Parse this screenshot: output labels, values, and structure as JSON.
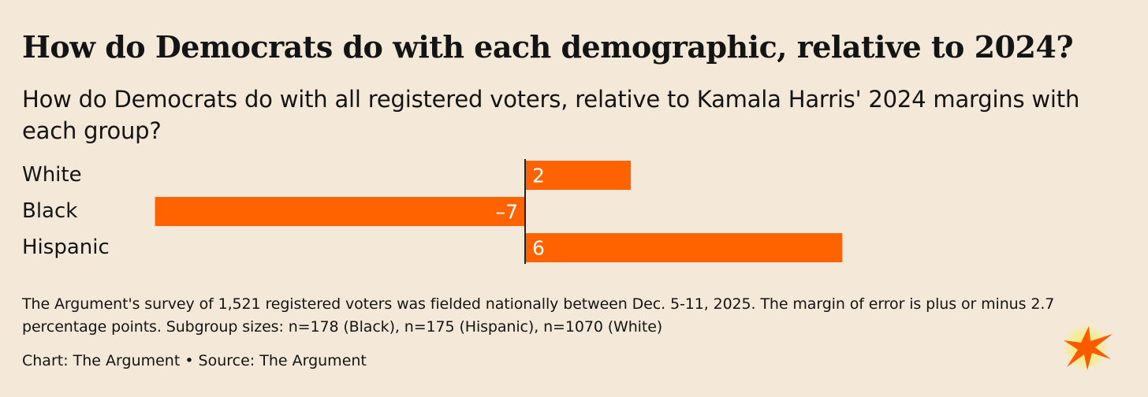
{
  "title": "How do Democrats do with each demographic, relative to 2024?",
  "subtitle": "How do Democrats do with all registered voters, relative to Kamala Harris' 2024 margins with each group?",
  "chart_data": {
    "type": "bar",
    "orientation": "horizontal",
    "categories": [
      "White",
      "Black",
      "Hispanic"
    ],
    "values": [
      2,
      -7,
      6
    ],
    "value_labels": [
      "2",
      "–7",
      "6"
    ],
    "xlim": [
      -8.5,
      8.5
    ],
    "baseline": 0,
    "bar_color": "#ff6300",
    "label_color": "#ffffff",
    "axis_color": "#222222",
    "grid": false,
    "legend": "none"
  },
  "note": "The Argument's survey of 1,521 registered voters was fielded nationally between Dec. 5-11, 2025. The margin of error is plus or minus 2.7 percentage points. Subgroup sizes: n=178 (Black), n=175 (Hispanic), n=1070 (White)",
  "credit": {
    "chart": "Chart: The Argument",
    "separator": "•",
    "source": "Source: The Argument"
  },
  "logo": {
    "icon": "starburst-logo-icon",
    "color": "#ff5a00",
    "glow_color": "#f3ee4a"
  },
  "colors": {
    "background": "#f4e9d8",
    "text": "#141414"
  }
}
